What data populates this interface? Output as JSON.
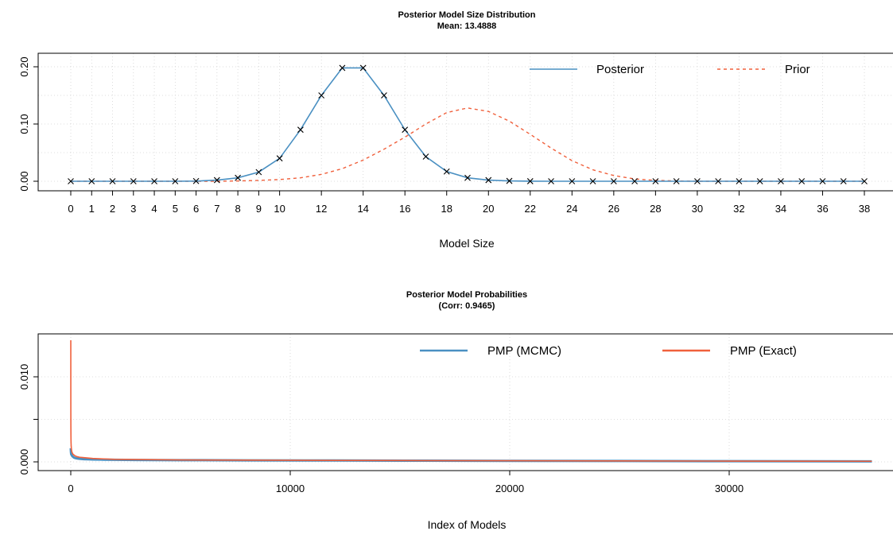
{
  "colors": {
    "posterior": "#4a90c2",
    "prior": "#f0603c",
    "mcmc": "#4a90c2",
    "exact": "#f0603c",
    "marker": "#000000",
    "grid": "#d3d3d3"
  },
  "chart_data": [
    {
      "type": "line",
      "title": "Posterior Model Size Distribution",
      "subtitle": "Mean: 13.4888",
      "xlabel": "Model Size",
      "ylabel": "",
      "xlim": [
        0,
        38
      ],
      "ylim": [
        0,
        0.2
      ],
      "x_ticks": [
        "0",
        "1",
        "2",
        "3",
        "4",
        "5",
        "6",
        "7",
        "8",
        "9",
        "10",
        "12",
        "14",
        "16",
        "18",
        "20",
        "22",
        "24",
        "26",
        "28",
        "30",
        "32",
        "34",
        "36",
        "38"
      ],
      "y_ticks": [
        "0.00",
        "0.10",
        "0.20"
      ],
      "grid": true,
      "legend": {
        "placement": "top-right",
        "entries": [
          "Posterior",
          "Prior"
        ]
      },
      "series": [
        {
          "name": "Posterior",
          "style": "solid-with-x-markers",
          "x": [
            0,
            1,
            2,
            3,
            4,
            5,
            6,
            7,
            8,
            9,
            10,
            11,
            12,
            13,
            14,
            15,
            16,
            17,
            18,
            19,
            20,
            21,
            22,
            23,
            24,
            25,
            26,
            27,
            28,
            29,
            30,
            31,
            32,
            33,
            34,
            35,
            36,
            37,
            38
          ],
          "values": [
            0,
            0,
            0,
            0,
            0,
            0,
            0.0003,
            0.002,
            0.006,
            0.016,
            0.04,
            0.09,
            0.15,
            0.198,
            0.198,
            0.15,
            0.09,
            0.043,
            0.017,
            0.006,
            0.002,
            0.0006,
            0.0001,
            0,
            0,
            0,
            0,
            0,
            0,
            0,
            0,
            0,
            0,
            0,
            0,
            0,
            0,
            0,
            0
          ]
        },
        {
          "name": "Prior",
          "style": "dashed",
          "x": [
            0,
            1,
            2,
            3,
            4,
            5,
            6,
            7,
            8,
            9,
            10,
            11,
            12,
            13,
            14,
            15,
            16,
            17,
            18,
            19,
            20,
            21,
            22,
            23,
            24,
            25,
            26,
            27,
            28,
            29,
            30,
            31,
            32,
            33,
            34,
            35,
            36,
            37,
            38
          ],
          "values": [
            0,
            0,
            0,
            0,
            0,
            0,
            0,
            0,
            0.0005,
            0.0015,
            0.003,
            0.006,
            0.012,
            0.022,
            0.037,
            0.056,
            0.077,
            0.1,
            0.12,
            0.128,
            0.122,
            0.105,
            0.082,
            0.058,
            0.036,
            0.02,
            0.01,
            0.004,
            0.0015,
            0.0005,
            0,
            0,
            0,
            0,
            0,
            0,
            0,
            0,
            0
          ]
        }
      ]
    },
    {
      "type": "line",
      "title": "Posterior Model Probabilities",
      "subtitle": "(Corr: 0.9465)",
      "xlabel": "Index of Models",
      "ylabel": "",
      "xlim": [
        0,
        36500
      ],
      "ylim": [
        0,
        0.015
      ],
      "x_ticks": [
        "0",
        "10000",
        "20000",
        "30000"
      ],
      "y_ticks": [
        "0.000",
        "0.010"
      ],
      "grid": true,
      "legend": {
        "placement": "top-right",
        "entries": [
          "PMP (MCMC)",
          "PMP (Exact)"
        ]
      },
      "series": [
        {
          "name": "PMP (MCMC)",
          "x": [
            1,
            5,
            10,
            20,
            40,
            60,
            100,
            150,
            200,
            300,
            400,
            600,
            800,
            1000,
            1500,
            2000,
            3000,
            5000,
            8000,
            12000,
            16000,
            20000,
            25000,
            30000,
            36500
          ],
          "values": [
            0.0016,
            0.0013,
            0.0011,
            0.0009,
            0.0008,
            0.0007,
            0.0006,
            0.0005,
            0.00045,
            0.0004,
            0.00036,
            0.00032,
            0.0003,
            0.00028,
            0.00026,
            0.00024,
            0.00022,
            0.0002,
            0.00018,
            0.00016,
            0.00014,
            0.00012,
            0.0001,
            8e-05,
            6e-05
          ]
        },
        {
          "name": "PMP (Exact)",
          "x": [
            1,
            2,
            3,
            5,
            8,
            10,
            15,
            20,
            30,
            40,
            60,
            100,
            150,
            200,
            300,
            400,
            600,
            800,
            1000,
            1500,
            2000,
            3000,
            5000,
            8000,
            12000,
            16000,
            20000,
            25000,
            30000,
            36500
          ],
          "values": [
            0.0143,
            0.009,
            0.006,
            0.0042,
            0.0031,
            0.0026,
            0.0021,
            0.0018,
            0.0015,
            0.0013,
            0.0011,
            0.0009,
            0.0008,
            0.0007,
            0.0006,
            0.00055,
            0.0005,
            0.00045,
            0.0004,
            0.00035,
            0.0003,
            0.00027,
            0.00023,
            0.0002,
            0.00017,
            0.00015,
            0.00013,
            0.00011,
            9e-05,
            7e-05
          ]
        }
      ]
    }
  ]
}
